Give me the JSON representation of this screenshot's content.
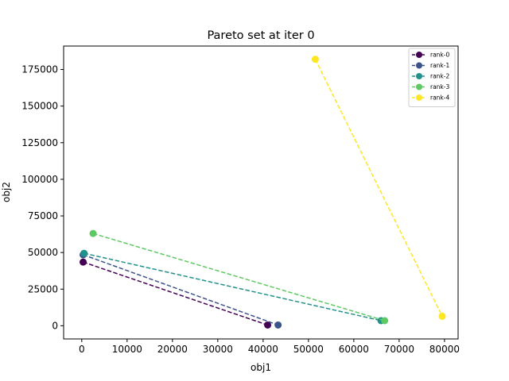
{
  "chart_data": {
    "type": "line",
    "title": "Pareto set at iter 0",
    "xlabel": "obj1",
    "ylabel": "obj2",
    "xlim": [
      -4000,
      83000
    ],
    "ylim": [
      -9000,
      191000
    ],
    "xticks": [
      0,
      10000,
      20000,
      30000,
      40000,
      50000,
      60000,
      70000,
      80000
    ],
    "yticks": [
      0,
      25000,
      50000,
      75000,
      100000,
      125000,
      150000,
      175000
    ],
    "grid": false,
    "legend_position": "top-right",
    "series": [
      {
        "name": "rank-0",
        "color": "#440154",
        "points": [
          [
            300,
            43500
          ],
          [
            41000,
            500
          ]
        ]
      },
      {
        "name": "rank-1",
        "color": "#3b528b",
        "points": [
          [
            300,
            48500
          ],
          [
            43300,
            500
          ]
        ]
      },
      {
        "name": "rank-2",
        "color": "#21918c",
        "points": [
          [
            500,
            49500
          ],
          [
            66000,
            3500
          ]
        ]
      },
      {
        "name": "rank-3",
        "color": "#5ec962",
        "points": [
          [
            2500,
            63000
          ],
          [
            66800,
            3500
          ]
        ]
      },
      {
        "name": "rank-4",
        "color": "#fde725",
        "points": [
          [
            51500,
            182000
          ],
          [
            79500,
            6500
          ]
        ]
      }
    ]
  }
}
